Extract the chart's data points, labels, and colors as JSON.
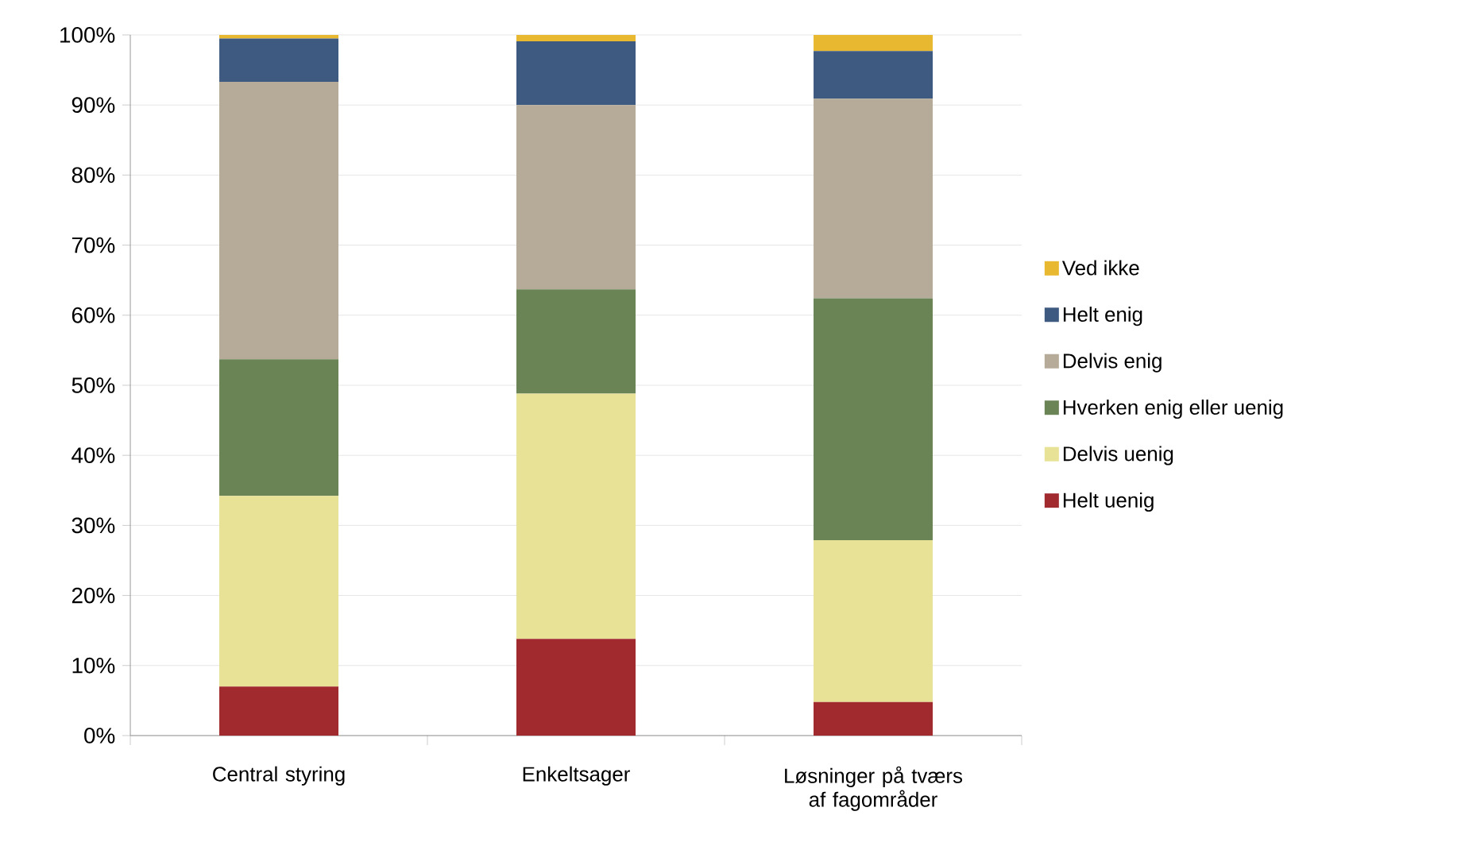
{
  "chart_data": {
    "type": "bar",
    "stacked": true,
    "categories": [
      "Central styring",
      "Enkeltsager",
      "Løsninger på tværs af fagområder"
    ],
    "series": [
      {
        "name": "Helt uenig",
        "color": "#a02a2e",
        "values": [
          7.0,
          13.8,
          4.8
        ]
      },
      {
        "name": "Delvis uenig",
        "color": "#e8e296",
        "values": [
          27.2,
          35.0,
          23.1
        ]
      },
      {
        "name": "Hverken enig eller uenig",
        "color": "#6a8456",
        "values": [
          19.5,
          14.9,
          34.5
        ]
      },
      {
        "name": "Delvis enig",
        "color": "#b5ab98",
        "values": [
          39.6,
          26.3,
          28.5
        ]
      },
      {
        "name": "Helt enig",
        "color": "#3f5a80",
        "values": [
          6.2,
          9.1,
          6.8
        ]
      },
      {
        "name": "Ved ikke",
        "color": "#e8b830",
        "values": [
          0.5,
          0.9,
          2.3
        ]
      }
    ],
    "ylim": [
      0,
      100
    ],
    "yticks": [
      {
        "value": 0,
        "label": "0%"
      },
      {
        "value": 10,
        "label": "10%"
      },
      {
        "value": 20,
        "label": "20%"
      },
      {
        "value": 30,
        "label": "30%"
      },
      {
        "value": 40,
        "label": "40%"
      },
      {
        "value": 50,
        "label": "50%"
      },
      {
        "value": 60,
        "label": "60%"
      },
      {
        "value": 70,
        "label": "70%"
      },
      {
        "value": 80,
        "label": "80%"
      },
      {
        "value": 90,
        "label": "90%"
      },
      {
        "value": 100,
        "label": "100%"
      }
    ],
    "grid": "y",
    "legend": "right"
  }
}
